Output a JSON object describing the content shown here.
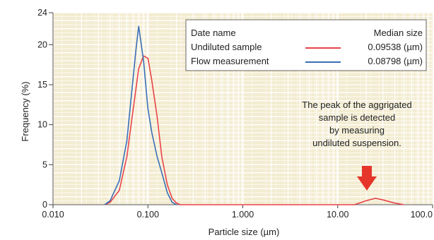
{
  "chart_data": {
    "type": "line",
    "xlabel": "Particle size (µm)",
    "ylabel": "Frequency (%)",
    "xscale": "log",
    "xlim": [
      0.01,
      100
    ],
    "ylim": [
      0,
      24
    ],
    "x_tick_labels": [
      "0.010",
      "0.100",
      "1.000",
      "10.00",
      "100.0"
    ],
    "y_tick_labels": [
      "0",
      "5",
      "10",
      "15",
      "20",
      "24"
    ],
    "y_tick_values": [
      0,
      5,
      10,
      15,
      20,
      24
    ],
    "grid": true,
    "legend_position": "top-right",
    "legend": {
      "header_left": "Date name",
      "header_right": "Median size"
    },
    "series": [
      {
        "name": "Undiluted sample",
        "value_label": "0.09538 (µm)",
        "color": "#e8444a",
        "x": [
          0.035,
          0.04,
          0.05,
          0.06,
          0.07,
          0.08,
          0.09,
          0.1,
          0.11,
          0.125,
          0.14,
          0.16,
          0.18,
          0.2,
          0.22,
          15,
          20,
          25,
          30,
          40,
          50
        ],
        "y": [
          0,
          0.3,
          1.8,
          6,
          12,
          17,
          18.6,
          18.3,
          15.5,
          11,
          6,
          2.5,
          0.8,
          0.2,
          0,
          0,
          0.5,
          0.8,
          0.6,
          0.2,
          0
        ]
      },
      {
        "name": "Flow measurement",
        "value_label": "0.08798 (µm)",
        "color": "#3a6fb5",
        "x": [
          0.035,
          0.04,
          0.05,
          0.06,
          0.07,
          0.075,
          0.08,
          0.09,
          0.1,
          0.11,
          0.125,
          0.14,
          0.16,
          0.18,
          0.2
        ],
        "y": [
          0,
          0.5,
          3,
          8,
          16,
          19.5,
          22.3,
          18,
          12,
          9,
          6,
          4,
          1.5,
          0.3,
          0
        ]
      }
    ],
    "annotation": {
      "lines": [
        "The peak of the aggrigated",
        "sample is detected",
        "by measuring",
        "undiluted suspension."
      ],
      "arrow_color": "#e6352b"
    },
    "background_color": "#f3ecd1",
    "grid_color": "#ffffff"
  }
}
